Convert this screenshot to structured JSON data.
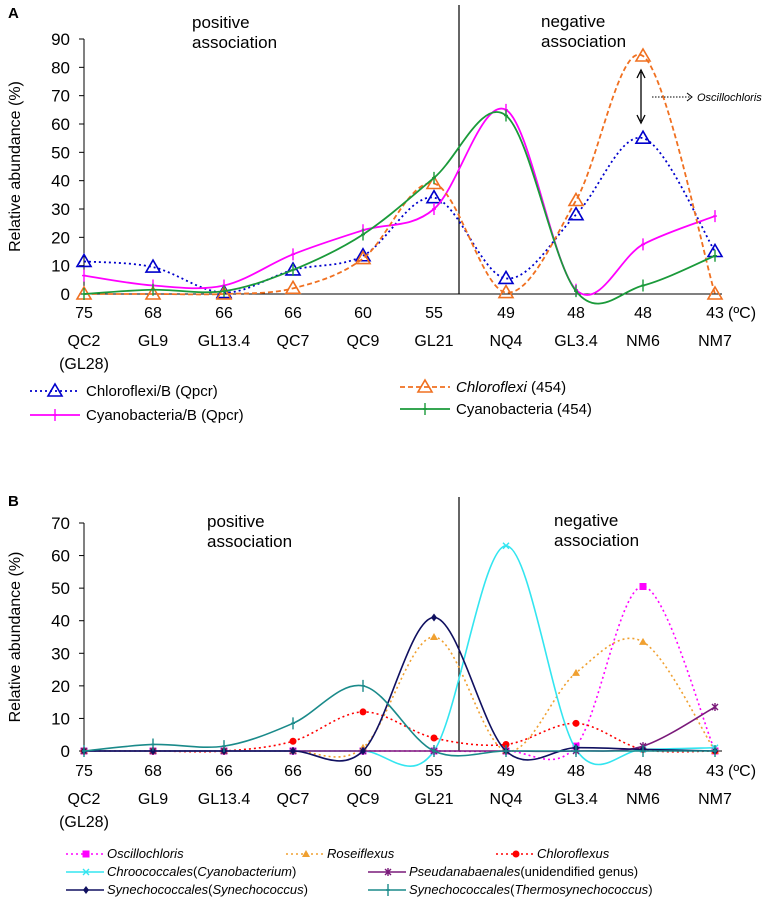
{
  "chart_data": [
    {
      "panel_label": "A",
      "type": "line",
      "ylabel": "Relative abundance (%)",
      "ylim": [
        0,
        90
      ],
      "yticks": [
        0,
        10,
        20,
        30,
        40,
        50,
        60,
        70,
        80,
        90
      ],
      "temperatures": [
        "75",
        "68",
        "66",
        "66",
        "60",
        "55",
        "49",
        "48",
        "48",
        "43"
      ],
      "temp_unit": "(ºC)",
      "categories": [
        "QC2",
        "GL9",
        "GL13.4",
        "QC7",
        "QC9",
        "GL21",
        "NQ4",
        "GL3.4",
        "NM6",
        "NM7"
      ],
      "category_sublabel": "(GL28)",
      "region_labels": {
        "left": [
          "positive",
          "association"
        ],
        "right": [
          "negative",
          "association"
        ]
      },
      "annotation": "Oscillochloris",
      "series": [
        {
          "name": "Chloroflexi/B (Qpcr)",
          "color": "#0000cc",
          "dash": "dot",
          "marker": "open-triangle",
          "values": [
            11.5,
            9.5,
            0.5,
            8.5,
            13.5,
            34,
            5.5,
            28,
            55,
            15
          ]
        },
        {
          "name": "Cyanobacteria/B (Qpcr)",
          "color": "#ff00ff",
          "dash": "solid",
          "marker": "plus",
          "values": [
            6.5,
            3,
            3,
            14,
            22.5,
            30,
            65,
            1.5,
            17.5,
            27.5
          ]
        },
        {
          "name": "Chloroflexi (454)",
          "italic_part": "Chloroflexi",
          "rest": " (454)",
          "color": "#f07020",
          "dash": "dash",
          "marker": "open-triangle",
          "values": [
            0,
            0,
            0,
            2,
            12.5,
            39,
            0.5,
            33,
            84,
            0
          ]
        },
        {
          "name": "Cyanobacteria (454)",
          "color": "#1a9a3a",
          "dash": "solid",
          "marker": "plus",
          "values": [
            0,
            1.5,
            1,
            8.5,
            21,
            41,
            63,
            1,
            3,
            13.5
          ]
        }
      ]
    },
    {
      "panel_label": "B",
      "type": "line",
      "ylabel": "Relative abundance (%)",
      "ylim": [
        0,
        70
      ],
      "yticks": [
        0,
        10,
        20,
        30,
        40,
        50,
        60,
        70
      ],
      "temperatures": [
        "75",
        "68",
        "66",
        "66",
        "60",
        "55",
        "49",
        "48",
        "48",
        "43"
      ],
      "temp_unit": "(ºC)",
      "categories": [
        "QC2",
        "GL9",
        "GL13.4",
        "QC7",
        "QC9",
        "GL21",
        "NQ4",
        "GL3.4",
        "NM6",
        "NM7"
      ],
      "category_sublabel": "(GL28)",
      "region_labels": {
        "left": [
          "positive",
          "association"
        ],
        "right": [
          "negative",
          "association"
        ]
      },
      "series": [
        {
          "name": "Oscillochloris",
          "parts": [
            [
              "Oscillochloris",
              true
            ]
          ],
          "color": "#ff00ff",
          "dash": "dot",
          "marker": "square",
          "values": [
            0,
            0,
            0,
            0,
            0,
            0,
            0,
            1.5,
            50.5,
            0
          ]
        },
        {
          "name": "Roseiflexus",
          "parts": [
            [
              "Roseiflexus",
              true
            ]
          ],
          "color": "#f0a030",
          "dash": "dot",
          "marker": "triangle",
          "values": [
            0,
            0,
            0,
            0,
            1,
            35,
            0,
            24,
            33.5,
            0
          ]
        },
        {
          "name": "Chloroflexus",
          "parts": [
            [
              "Chloroflexus",
              true
            ]
          ],
          "color": "#ff0000",
          "dash": "dot",
          "marker": "circle",
          "values": [
            0,
            0,
            0,
            3,
            12,
            4,
            2,
            8.5,
            0.5,
            0
          ]
        },
        {
          "name": "Chroococcales(Cyanobacterium)",
          "parts": [
            [
              "Chroococcales",
              true
            ],
            [
              "(",
              false
            ],
            [
              "Cyanobacterium",
              true
            ],
            [
              ")",
              false
            ]
          ],
          "color": "#33e5f0",
          "dash": "solid",
          "marker": "x",
          "values": [
            0,
            0,
            0,
            0,
            0,
            0,
            63,
            0.5,
            0.5,
            1
          ]
        },
        {
          "name": "Pseudanabaenales(unidendified genus)",
          "parts": [
            [
              "Pseudanabaenales",
              true
            ],
            [
              "(unidendified genus)",
              false
            ]
          ],
          "color": "#7a1a7a",
          "dash": "solid",
          "marker": "star",
          "values": [
            0,
            0,
            0,
            0,
            0,
            0,
            0,
            0,
            1.5,
            13.5
          ]
        },
        {
          "name": "Synechococcales(Synechococcus)",
          "parts": [
            [
              "Synechococcales",
              true
            ],
            [
              "(",
              false
            ],
            [
              "Synechococcus",
              true
            ],
            [
              ")",
              false
            ]
          ],
          "color": "#101060",
          "dash": "solid",
          "marker": "diamond",
          "values": [
            0,
            0,
            0,
            0,
            0,
            41,
            0,
            1,
            0.5,
            0
          ]
        },
        {
          "name": "Synechococcales(Thermosynechococcus)",
          "parts": [
            [
              "Synechococcales",
              true
            ],
            [
              "(",
              false
            ],
            [
              "Thermosynechococcus",
              true
            ],
            [
              ")",
              false
            ]
          ],
          "color": "#1a8a8a",
          "dash": "solid",
          "marker": "plus",
          "values": [
            0,
            2,
            1.5,
            8.5,
            20,
            0,
            0,
            0,
            0,
            0
          ]
        }
      ]
    }
  ]
}
